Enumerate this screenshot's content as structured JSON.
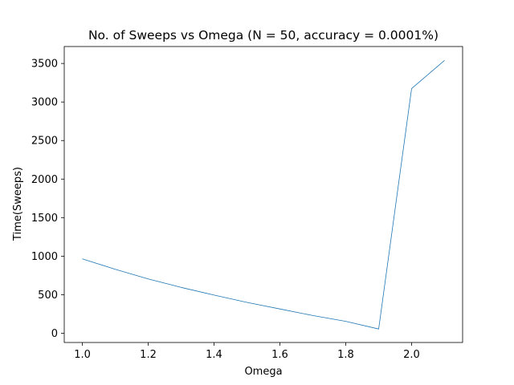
{
  "chart_data": {
    "type": "line",
    "title": "No. of Sweeps vs Omega (N = 50, accuracy = 0.0001%)",
    "xlabel": "Omega",
    "ylabel": "Time(Sweeps)",
    "xlim": [
      0.945,
      2.155
    ],
    "ylim": [
      -120,
      3720
    ],
    "xticks": [
      1.0,
      1.2,
      1.4,
      1.6,
      1.8,
      2.0
    ],
    "xtick_labels": [
      "1.0",
      "1.2",
      "1.4",
      "1.6",
      "1.8",
      "2.0"
    ],
    "yticks": [
      0,
      500,
      1000,
      1500,
      2000,
      2500,
      3000,
      3500
    ],
    "ytick_labels": [
      "0",
      "500",
      "1000",
      "1500",
      "2000",
      "2500",
      "3000",
      "3500"
    ],
    "grid": false,
    "series": [
      {
        "color": "#1f77b4",
        "x": [
          1.0,
          1.1,
          1.2,
          1.3,
          1.4,
          1.5,
          1.6,
          1.7,
          1.8,
          1.9,
          2.0,
          2.1
        ],
        "y": [
          965,
          830,
          705,
          595,
          495,
          400,
          315,
          230,
          155,
          55,
          3175,
          3540
        ]
      }
    ]
  }
}
